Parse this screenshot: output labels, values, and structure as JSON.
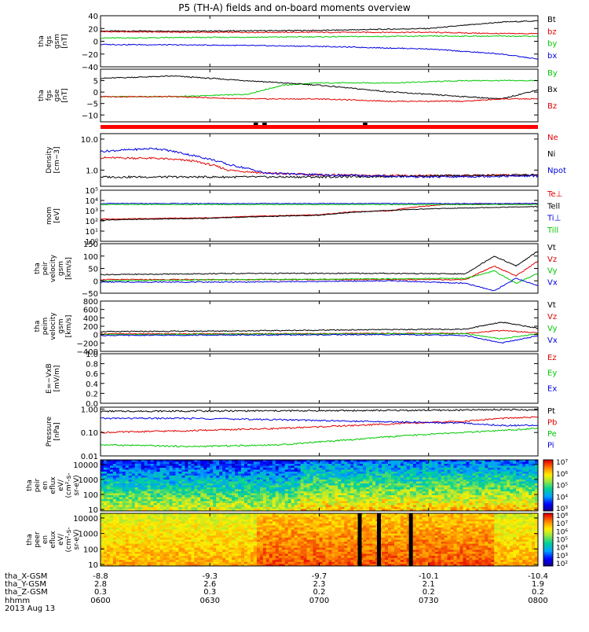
{
  "title": "P5 (TH-A) fields and on-board moments overview",
  "date": "2013 Aug 13",
  "footer": {
    "row_labels": [
      "tha_X-GSM",
      "tha_Y-GSM",
      "tha_Z-GSM",
      "hhmm"
    ],
    "columns": [
      {
        "x": "-8.8",
        "y": "2.8",
        "z": "0.3",
        "t": "0600"
      },
      {
        "x": "-9.3",
        "y": "2.6",
        "z": "0.3",
        "t": "0630"
      },
      {
        "x": "-9.7",
        "y": "2.3",
        "z": "0.2",
        "t": "0700"
      },
      {
        "x": "-10.1",
        "y": "2.1",
        "z": "0.2",
        "t": "0730"
      },
      {
        "x": "-10.4",
        "y": "1.9",
        "z": "0.2",
        "t": "0800"
      }
    ]
  },
  "colors": {
    "black": "#000000",
    "red": "#e00000",
    "green": "#00c800",
    "blue": "#0000e0"
  },
  "chart_data": [
    {
      "id": "fgs_gsm",
      "type": "line",
      "ylabel": [
        "tha",
        "fgs",
        "gsm",
        "[nT]"
      ],
      "ylim": [
        -40,
        40
      ],
      "yscale": "linear",
      "ticks": [
        {
          "v": 40,
          "t": "40"
        },
        {
          "v": 20,
          "t": "20"
        },
        {
          "v": 0,
          "t": "0"
        },
        {
          "v": -20,
          "t": "−20"
        },
        {
          "v": -40,
          "t": "−40"
        }
      ],
      "series": [
        {
          "name": "Bt",
          "color": "#000000",
          "x": [
            0,
            30,
            60,
            90,
            100,
            110,
            120
          ],
          "y": [
            16,
            16,
            17,
            20,
            25,
            30,
            32
          ]
        },
        {
          "name": "bz",
          "color": "#e00000",
          "x": [
            0,
            30,
            60,
            90,
            100,
            110,
            120
          ],
          "y": [
            15,
            14,
            14,
            14,
            13,
            12,
            12
          ]
        },
        {
          "name": "by",
          "color": "#00c800",
          "x": [
            0,
            30,
            60,
            90,
            100,
            110,
            120
          ],
          "y": [
            5,
            6,
            7,
            8,
            8,
            8,
            8
          ]
        },
        {
          "name": "bx",
          "color": "#0000e0",
          "x": [
            0,
            30,
            60,
            90,
            100,
            110,
            120
          ],
          "y": [
            -5,
            -6,
            -8,
            -12,
            -16,
            -20,
            -28
          ]
        }
      ]
    },
    {
      "id": "fgs_gse",
      "type": "line",
      "ylabel": [
        "tha",
        "fgs",
        "gse",
        "[nT]"
      ],
      "ylim": [
        -13,
        10
      ],
      "yscale": "linear",
      "ticks": [
        {
          "v": 5,
          "t": "5"
        },
        {
          "v": 0,
          "t": "0"
        },
        {
          "v": -5,
          "t": "−5"
        },
        {
          "v": -10,
          "t": "−10"
        }
      ],
      "series": [
        {
          "name": "By",
          "color": "#00c800",
          "x": [
            0,
            20,
            40,
            50,
            60,
            80,
            100,
            110,
            120
          ],
          "y": [
            -2,
            -2,
            -1,
            3,
            4,
            4,
            5,
            5,
            5
          ]
        },
        {
          "name": "Bx",
          "color": "#000000",
          "x": [
            0,
            20,
            40,
            50,
            60,
            80,
            100,
            110,
            120
          ],
          "y": [
            6,
            7,
            5,
            4,
            3,
            0,
            -2,
            -3,
            1
          ]
        },
        {
          "name": "Bz",
          "color": "#e00000",
          "x": [
            0,
            20,
            40,
            50,
            60,
            80,
            100,
            110,
            120
          ],
          "y": [
            -2,
            -2,
            -3,
            -3,
            -3,
            -4,
            -4,
            -3,
            -3
          ]
        }
      ]
    },
    {
      "id": "density",
      "type": "line",
      "ylabel": [
        "Density",
        "[cm−3]"
      ],
      "ylim": [
        0.3,
        15
      ],
      "yscale": "log",
      "ticks": [
        {
          "v": 10,
          "t": "10.0"
        },
        {
          "v": 1,
          "t": "1.0"
        }
      ],
      "series": [
        {
          "name": "Ne",
          "color": "#e00000",
          "x": [
            0,
            15,
            25,
            35,
            45,
            60,
            90,
            120
          ],
          "y": [
            2.5,
            2.4,
            2.0,
            1.0,
            0.8,
            0.7,
            0.65,
            0.7
          ]
        },
        {
          "name": "Ni",
          "color": "#000000",
          "x": [
            0,
            15,
            25,
            35,
            45,
            60,
            90,
            120
          ],
          "y": [
            0.6,
            0.6,
            0.6,
            0.6,
            0.6,
            0.6,
            0.65,
            0.7
          ]
        },
        {
          "name": "Npot",
          "color": "#0000e0",
          "x": [
            0,
            15,
            25,
            35,
            45,
            60,
            90,
            120
          ],
          "y": [
            4.0,
            5.0,
            3.0,
            1.5,
            0.8,
            0.7,
            0.6,
            0.65
          ]
        }
      ]
    },
    {
      "id": "temp",
      "type": "line",
      "ylabel": [
        "mom",
        "[eV]"
      ],
      "ylim": [
        1,
        100000
      ],
      "yscale": "log",
      "ticks": [
        {
          "v": 100000,
          "t": "10⁵"
        },
        {
          "v": 10000,
          "t": "10⁴"
        },
        {
          "v": 1000,
          "t": "10³"
        },
        {
          "v": 100,
          "t": "10²"
        },
        {
          "v": 10,
          "t": "10¹"
        },
        {
          "v": 1,
          "t": "10⁰"
        }
      ],
      "series": [
        {
          "name": "Te⊥",
          "color": "#e00000",
          "x": [
            0,
            30,
            60,
            63,
            70,
            80,
            95,
            120
          ],
          "y": [
            150,
            200,
            400,
            500,
            800,
            1000,
            4000,
            5000
          ]
        },
        {
          "name": "Tell",
          "color": "#000000",
          "x": [
            0,
            30,
            60,
            70,
            90,
            120
          ],
          "y": [
            120,
            180,
            350,
            700,
            1500,
            2500
          ]
        },
        {
          "name": "Ti⊥",
          "color": "#0000e0",
          "x": [
            0,
            120
          ],
          "y": [
            5000,
            5000
          ]
        },
        {
          "name": "Till",
          "color": "#00c800",
          "x": [
            0,
            120
          ],
          "y": [
            4000,
            4000
          ]
        }
      ]
    },
    {
      "id": "peir_vel",
      "type": "line",
      "ylabel": [
        "tha",
        "peir",
        "velocity",
        "gsm",
        "[km/s]"
      ],
      "ylim": [
        -50,
        150
      ],
      "yscale": "linear",
      "ticks": [
        {
          "v": 150,
          "t": "150"
        },
        {
          "v": 100,
          "t": "100"
        },
        {
          "v": 50,
          "t": "50"
        },
        {
          "v": 0,
          "t": "0"
        },
        {
          "v": -50,
          "t": "−50"
        }
      ],
      "series": [
        {
          "name": "Vt",
          "color": "#000000",
          "x": [
            0,
            40,
            80,
            100,
            108,
            114,
            120
          ],
          "y": [
            25,
            30,
            30,
            28,
            100,
            60,
            120
          ]
        },
        {
          "name": "Vz",
          "color": "#e00000",
          "x": [
            0,
            40,
            80,
            100,
            108,
            114,
            120
          ],
          "y": [
            5,
            5,
            5,
            5,
            60,
            20,
            80
          ]
        },
        {
          "name": "Vy",
          "color": "#00c800",
          "x": [
            0,
            40,
            80,
            100,
            108,
            114,
            120
          ],
          "y": [
            0,
            5,
            8,
            10,
            40,
            -10,
            30
          ]
        },
        {
          "name": "Vx",
          "color": "#0000e0",
          "x": [
            0,
            40,
            80,
            100,
            108,
            114,
            120
          ],
          "y": [
            -5,
            -5,
            0,
            -10,
            -40,
            10,
            -20
          ]
        }
      ]
    },
    {
      "id": "peim_vel",
      "type": "line",
      "ylabel": [
        "tha",
        "peim",
        "velocity",
        "gsm",
        "[km/s]"
      ],
      "ylim": [
        -400,
        800
      ],
      "yscale": "linear",
      "ticks": [
        {
          "v": 800,
          "t": "800"
        },
        {
          "v": 600,
          "t": "600"
        },
        {
          "v": 400,
          "t": "400"
        },
        {
          "v": 200,
          "t": "200"
        },
        {
          "v": 0,
          "t": "0"
        },
        {
          "v": -200,
          "t": "−200"
        },
        {
          "v": -400,
          "t": "−400"
        }
      ],
      "series": [
        {
          "name": "Vt",
          "color": "#000000",
          "x": [
            0,
            40,
            80,
            100,
            110,
            120
          ],
          "y": [
            70,
            90,
            120,
            130,
            300,
            150
          ]
        },
        {
          "name": "Vz",
          "color": "#e00000",
          "x": [
            0,
            40,
            80,
            100,
            110,
            120
          ],
          "y": [
            20,
            20,
            30,
            30,
            100,
            40
          ]
        },
        {
          "name": "Vy",
          "color": "#00c800",
          "x": [
            0,
            40,
            80,
            100,
            110,
            120
          ],
          "y": [
            0,
            10,
            20,
            20,
            -100,
            20
          ]
        },
        {
          "name": "Vx",
          "color": "#0000e0",
          "x": [
            0,
            40,
            80,
            100,
            110,
            120
          ],
          "y": [
            -20,
            -10,
            0,
            -20,
            -200,
            -30
          ]
        }
      ]
    },
    {
      "id": "efield",
      "type": "line",
      "ylabel": [
        "E=−VxB",
        "[mV/m]"
      ],
      "ylim": [
        0,
        1
      ],
      "yscale": "linear",
      "ticks": [
        {
          "v": 1.0,
          "t": "1.0"
        },
        {
          "v": 0.8,
          "t": "0.8"
        },
        {
          "v": 0.6,
          "t": "0.6"
        },
        {
          "v": 0.4,
          "t": "0.4"
        },
        {
          "v": 0.2,
          "t": "0.2"
        },
        {
          "v": 0.0,
          "t": "0.0"
        }
      ],
      "series": [
        {
          "name": "Ez",
          "color": "#e00000",
          "x": [],
          "y": []
        },
        {
          "name": "Ey",
          "color": "#00c800",
          "x": [],
          "y": []
        },
        {
          "name": "Ex",
          "color": "#0000e0",
          "x": [],
          "y": []
        }
      ]
    },
    {
      "id": "pressure",
      "type": "line",
      "ylabel": [
        "Pressure",
        "[nPa]"
      ],
      "ylim": [
        0.01,
        1.2
      ],
      "yscale": "log",
      "ticks": [
        {
          "v": 1,
          "t": "1.00"
        },
        {
          "v": 0.1,
          "t": "0.10"
        },
        {
          "v": 0.01,
          "t": "0.01"
        }
      ],
      "series": [
        {
          "name": "Pt",
          "color": "#000000",
          "x": [
            0,
            60,
            100,
            110,
            120
          ],
          "y": [
            0.8,
            0.85,
            0.9,
            0.95,
            0.9
          ]
        },
        {
          "name": "Pb",
          "color": "#e00000",
          "x": [
            0,
            25,
            50,
            70,
            100,
            110,
            120
          ],
          "y": [
            0.1,
            0.12,
            0.15,
            0.2,
            0.3,
            0.4,
            0.45
          ]
        },
        {
          "name": "Pe",
          "color": "#00c800",
          "x": [
            0,
            25,
            50,
            70,
            100,
            110,
            120
          ],
          "y": [
            0.03,
            0.025,
            0.03,
            0.05,
            0.1,
            0.12,
            0.15
          ]
        },
        {
          "name": "Pi",
          "color": "#0000e0",
          "x": [
            0,
            25,
            50,
            70,
            100,
            110,
            120
          ],
          "y": [
            0.4,
            0.4,
            0.35,
            0.3,
            0.25,
            0.2,
            0.2
          ]
        }
      ]
    },
    {
      "id": "peir_eflux",
      "type": "heatmap",
      "ylabel": [
        "tha",
        "peir",
        "en",
        "eflux",
        "eV/",
        "(cm²-s-",
        "sr-eV)"
      ],
      "yscale": "log",
      "ylim": [
        8,
        20000
      ],
      "ticks": [
        {
          "v": 10000,
          "t": "10000"
        },
        {
          "v": 1000,
          "t": "1000"
        },
        {
          "v": 100,
          "t": "100"
        },
        {
          "v": 10,
          "t": "10"
        }
      ],
      "colorbar": [
        "10⁷",
        "10⁶",
        "10⁵",
        "10⁴",
        "10³"
      ]
    },
    {
      "id": "peer_eflux",
      "type": "heatmap",
      "ylabel": [
        "tha",
        "peer",
        "en",
        "eflux",
        "eV/",
        "(cm²-s-",
        "sr-eV)"
      ],
      "yscale": "log",
      "ylim": [
        8,
        20000
      ],
      "ticks": [
        {
          "v": 10000,
          "t": "10000"
        },
        {
          "v": 1000,
          "t": "1000"
        },
        {
          "v": 100,
          "t": "100"
        },
        {
          "v": 10,
          "t": "10"
        }
      ],
      "colorbar": [
        "10⁸",
        "10⁷",
        "10⁶",
        "10⁵",
        "10⁴",
        "10³",
        "10²"
      ]
    }
  ]
}
